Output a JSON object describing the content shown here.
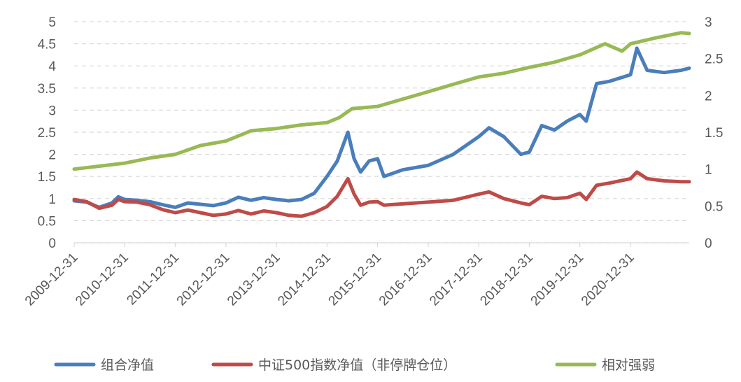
{
  "chart_data": {
    "type": "line",
    "x_tick_labels": [
      "2009-12-31",
      "2010-12-31",
      "2011-12-31",
      "2012-12-31",
      "2013-12-31",
      "2014-12-31",
      "2015-12-31",
      "2016-12-31",
      "2017-12-31",
      "2018-12-31",
      "2019-12-31",
      "2020-12-31"
    ],
    "y_left": {
      "ticks": [
        "0",
        "0.5",
        "1",
        "1.5",
        "2",
        "2.5",
        "3",
        "3.5",
        "4",
        "4.5",
        "5"
      ],
      "ylim": [
        0,
        5
      ]
    },
    "y_right": {
      "ticks": [
        "0",
        "0.5",
        "1",
        "1.5",
        "2",
        "2.5",
        "3"
      ],
      "ylim": [
        0,
        3
      ]
    },
    "grid": "horizontal dashed",
    "legend_position": "bottom",
    "series": [
      {
        "name": "组合净值",
        "axis": "left",
        "color": "#4a7ebb",
        "points": [
          [
            "2009-12-31",
            0.95
          ],
          [
            "2010-03-31",
            0.92
          ],
          [
            "2010-06-30",
            0.8
          ],
          [
            "2010-09-30",
            0.9
          ],
          [
            "2010-11-15",
            1.04
          ],
          [
            "2010-12-31",
            0.98
          ],
          [
            "2011-03-31",
            0.96
          ],
          [
            "2011-06-30",
            0.93
          ],
          [
            "2011-09-30",
            0.86
          ],
          [
            "2011-12-31",
            0.8
          ],
          [
            "2012-03-31",
            0.9
          ],
          [
            "2012-06-30",
            0.87
          ],
          [
            "2012-09-30",
            0.84
          ],
          [
            "2012-12-31",
            0.9
          ],
          [
            "2013-03-31",
            1.03
          ],
          [
            "2013-06-30",
            0.96
          ],
          [
            "2013-09-30",
            1.02
          ],
          [
            "2013-12-31",
            0.98
          ],
          [
            "2014-03-31",
            0.95
          ],
          [
            "2014-06-30",
            0.98
          ],
          [
            "2014-09-30",
            1.12
          ],
          [
            "2014-12-31",
            1.5
          ],
          [
            "2015-03-15",
            1.85
          ],
          [
            "2015-05-31",
            2.5
          ],
          [
            "2015-07-15",
            1.9
          ],
          [
            "2015-08-31",
            1.6
          ],
          [
            "2015-10-31",
            1.85
          ],
          [
            "2015-12-31",
            1.9
          ],
          [
            "2016-02-15",
            1.5
          ],
          [
            "2016-06-30",
            1.65
          ],
          [
            "2016-12-31",
            1.75
          ],
          [
            "2017-06-30",
            2.0
          ],
          [
            "2017-12-31",
            2.4
          ],
          [
            "2018-03-15",
            2.6
          ],
          [
            "2018-06-30",
            2.4
          ],
          [
            "2018-10-31",
            2.0
          ],
          [
            "2018-12-31",
            2.05
          ],
          [
            "2019-03-31",
            2.65
          ],
          [
            "2019-06-30",
            2.55
          ],
          [
            "2019-09-30",
            2.75
          ],
          [
            "2019-12-31",
            2.9
          ],
          [
            "2020-02-15",
            2.75
          ],
          [
            "2020-04-30",
            3.6
          ],
          [
            "2020-07-31",
            3.65
          ],
          [
            "2020-12-31",
            3.8
          ],
          [
            "2021-02-15",
            4.4
          ],
          [
            "2021-04-30",
            3.9
          ],
          [
            "2021-08-31",
            3.85
          ],
          [
            "2021-12-31",
            3.9
          ],
          [
            "2022-02-28",
            3.95
          ]
        ]
      },
      {
        "name": "中证500指数净值（非停牌仓位）",
        "axis": "left",
        "color": "#be4b48",
        "points": [
          [
            "2009-12-31",
            0.98
          ],
          [
            "2010-03-31",
            0.93
          ],
          [
            "2010-06-30",
            0.78
          ],
          [
            "2010-09-30",
            0.85
          ],
          [
            "2010-11-15",
            0.98
          ],
          [
            "2010-12-31",
            0.93
          ],
          [
            "2011-03-31",
            0.92
          ],
          [
            "2011-06-30",
            0.86
          ],
          [
            "2011-09-30",
            0.75
          ],
          [
            "2011-12-31",
            0.68
          ],
          [
            "2012-03-31",
            0.74
          ],
          [
            "2012-06-30",
            0.68
          ],
          [
            "2012-09-30",
            0.62
          ],
          [
            "2012-12-31",
            0.65
          ],
          [
            "2013-03-31",
            0.73
          ],
          [
            "2013-06-30",
            0.65
          ],
          [
            "2013-09-30",
            0.72
          ],
          [
            "2013-12-31",
            0.68
          ],
          [
            "2014-03-31",
            0.62
          ],
          [
            "2014-06-30",
            0.6
          ],
          [
            "2014-09-30",
            0.68
          ],
          [
            "2014-12-31",
            0.82
          ],
          [
            "2015-03-15",
            1.05
          ],
          [
            "2015-05-31",
            1.45
          ],
          [
            "2015-07-15",
            1.1
          ],
          [
            "2015-08-31",
            0.85
          ],
          [
            "2015-10-31",
            0.92
          ],
          [
            "2015-12-31",
            0.93
          ],
          [
            "2016-02-15",
            0.85
          ],
          [
            "2016-06-30",
            0.88
          ],
          [
            "2016-12-31",
            0.92
          ],
          [
            "2017-06-30",
            0.96
          ],
          [
            "2017-12-31",
            1.1
          ],
          [
            "2018-03-15",
            1.15
          ],
          [
            "2018-06-30",
            1.0
          ],
          [
            "2018-10-31",
            0.9
          ],
          [
            "2018-12-31",
            0.86
          ],
          [
            "2019-03-31",
            1.05
          ],
          [
            "2019-06-30",
            1.0
          ],
          [
            "2019-09-30",
            1.02
          ],
          [
            "2019-12-31",
            1.12
          ],
          [
            "2020-02-15",
            0.98
          ],
          [
            "2020-04-30",
            1.3
          ],
          [
            "2020-07-31",
            1.35
          ],
          [
            "2020-12-31",
            1.45
          ],
          [
            "2021-02-15",
            1.6
          ],
          [
            "2021-04-30",
            1.45
          ],
          [
            "2021-08-31",
            1.4
          ],
          [
            "2021-12-31",
            1.38
          ],
          [
            "2022-02-28",
            1.38
          ]
        ]
      },
      {
        "name": "相对强弱",
        "axis": "right",
        "color": "#98b954",
        "points": [
          [
            "2009-12-31",
            1.0
          ],
          [
            "2010-06-30",
            1.04
          ],
          [
            "2010-12-31",
            1.08
          ],
          [
            "2011-06-30",
            1.15
          ],
          [
            "2011-12-31",
            1.2
          ],
          [
            "2012-06-30",
            1.32
          ],
          [
            "2012-12-31",
            1.38
          ],
          [
            "2013-06-30",
            1.52
          ],
          [
            "2013-12-31",
            1.55
          ],
          [
            "2014-06-30",
            1.6
          ],
          [
            "2014-12-31",
            1.63
          ],
          [
            "2015-03-31",
            1.7
          ],
          [
            "2015-06-30",
            1.82
          ],
          [
            "2015-12-31",
            1.85
          ],
          [
            "2016-06-30",
            1.95
          ],
          [
            "2016-12-31",
            2.05
          ],
          [
            "2017-06-30",
            2.15
          ],
          [
            "2017-12-31",
            2.25
          ],
          [
            "2018-06-30",
            2.3
          ],
          [
            "2018-12-31",
            2.38
          ],
          [
            "2019-06-30",
            2.45
          ],
          [
            "2019-12-31",
            2.55
          ],
          [
            "2020-06-30",
            2.7
          ],
          [
            "2020-10-31",
            2.6
          ],
          [
            "2020-12-31",
            2.7
          ],
          [
            "2021-06-30",
            2.78
          ],
          [
            "2021-12-31",
            2.85
          ],
          [
            "2022-02-28",
            2.84
          ]
        ]
      }
    ]
  }
}
